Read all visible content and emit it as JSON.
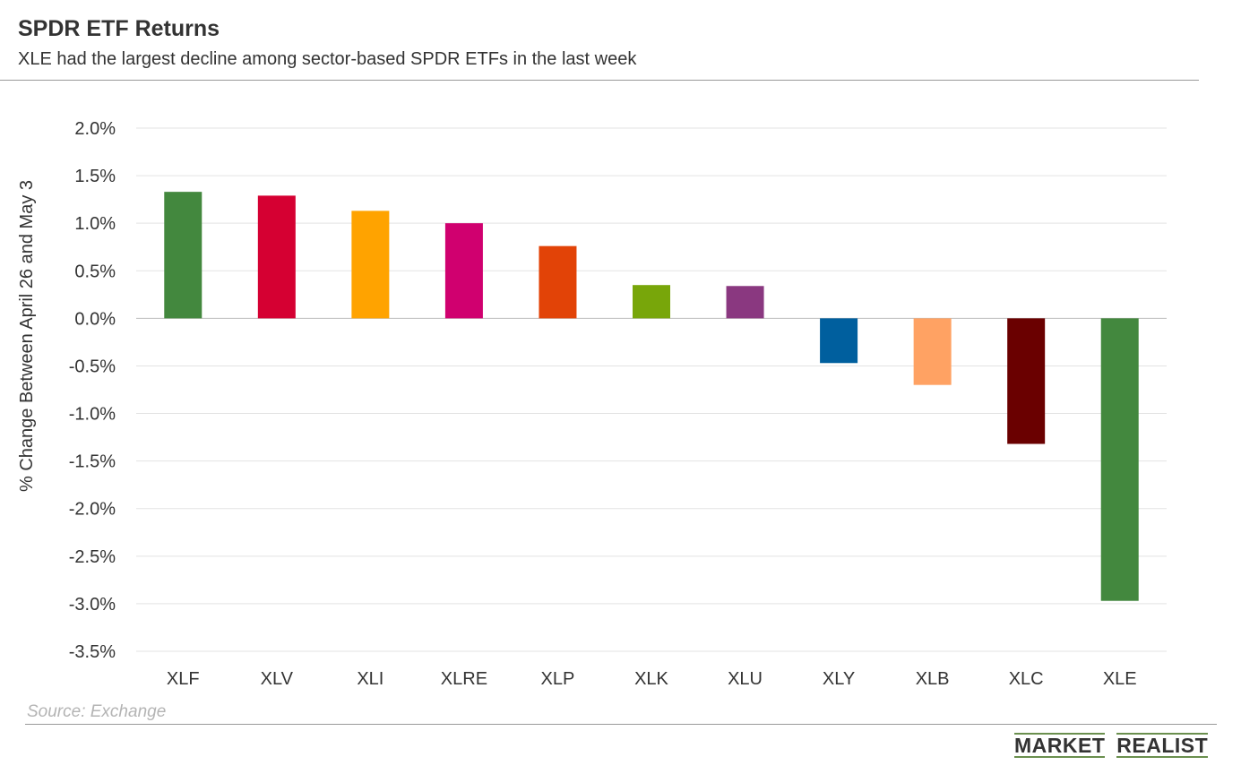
{
  "header": {
    "title": "SPDR ETF Returns",
    "subtitle": "XLE had the largest decline among sector-based SPDR ETFs in the last week"
  },
  "footer": {
    "source": "Source: Exchange",
    "brand_left": "MARKET",
    "brand_right": "REALIST",
    "brand_accent_color": "#6a8f4e"
  },
  "chart_data": {
    "type": "bar",
    "title": "SPDR ETF Returns",
    "xlabel": "",
    "ylabel": "% Change Between April 26 and May 3",
    "ylim": [
      -3.5,
      2.0
    ],
    "ytick_step": 0.5,
    "ytick_labels": [
      "2.0%",
      "1.5%",
      "1.0%",
      "0.5%",
      "0.0%",
      "-0.5%",
      "-1.0%",
      "-1.5%",
      "-2.0%",
      "-2.5%",
      "-3.0%",
      "-3.5%"
    ],
    "grid": true,
    "categories": [
      "XLF",
      "XLV",
      "XLI",
      "XLRE",
      "XLP",
      "XLK",
      "XLU",
      "XLY",
      "XLB",
      "XLC",
      "XLE"
    ],
    "values": [
      1.33,
      1.29,
      1.13,
      1.0,
      0.76,
      0.35,
      0.34,
      -0.47,
      -0.7,
      -1.32,
      -2.97
    ],
    "colors": [
      "#43883e",
      "#d50032",
      "#ffa300",
      "#d0006f",
      "#e24307",
      "#78a60a",
      "#8a3880",
      "#005f9e",
      "#ffa263",
      "#6a0000",
      "#43883e"
    ]
  }
}
